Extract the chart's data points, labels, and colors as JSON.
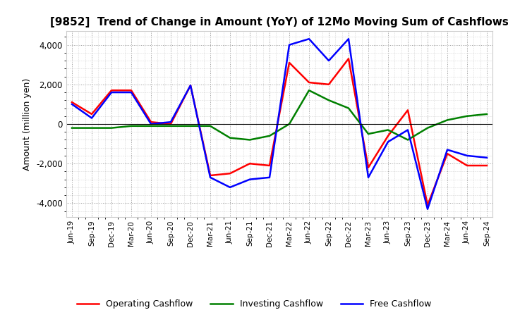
{
  "title": "[9852]  Trend of Change in Amount (YoY) of 12Mo Moving Sum of Cashflows",
  "ylabel": "Amount (million yen)",
  "ylim": [
    -4700,
    4700
  ],
  "yticks": [
    -4000,
    -2000,
    0,
    2000,
    4000
  ],
  "x_labels": [
    "Jun-19",
    "Sep-19",
    "Dec-19",
    "Mar-20",
    "Jun-20",
    "Sep-20",
    "Dec-20",
    "Mar-21",
    "Jun-21",
    "Sep-21",
    "Dec-21",
    "Mar-22",
    "Jun-22",
    "Sep-22",
    "Dec-22",
    "Mar-23",
    "Jun-23",
    "Sep-23",
    "Dec-23",
    "Mar-24",
    "Jun-24",
    "Sep-24"
  ],
  "operating": [
    1100,
    500,
    1700,
    1700,
    100,
    0,
    1950,
    -2600,
    -2500,
    -2000,
    -2100,
    3100,
    2100,
    2000,
    3300,
    -2200,
    -600,
    700,
    -4100,
    -1500,
    -2100,
    -2100
  ],
  "investing": [
    -200,
    -200,
    -200,
    -100,
    -100,
    -100,
    -100,
    -100,
    -700,
    -800,
    -600,
    0,
    1700,
    1200,
    800,
    -500,
    -300,
    -800,
    -200,
    200,
    400,
    500
  ],
  "free": [
    1000,
    300,
    1600,
    1600,
    0,
    100,
    1950,
    -2700,
    -3200,
    -2800,
    -2700,
    4000,
    4300,
    3200,
    4300,
    -2700,
    -900,
    -300,
    -4300,
    -1300,
    -1600,
    -1700
  ],
  "operating_color": "#ff0000",
  "investing_color": "#008000",
  "free_color": "#0000ff",
  "background_color": "#ffffff",
  "grid_color": "#999999"
}
